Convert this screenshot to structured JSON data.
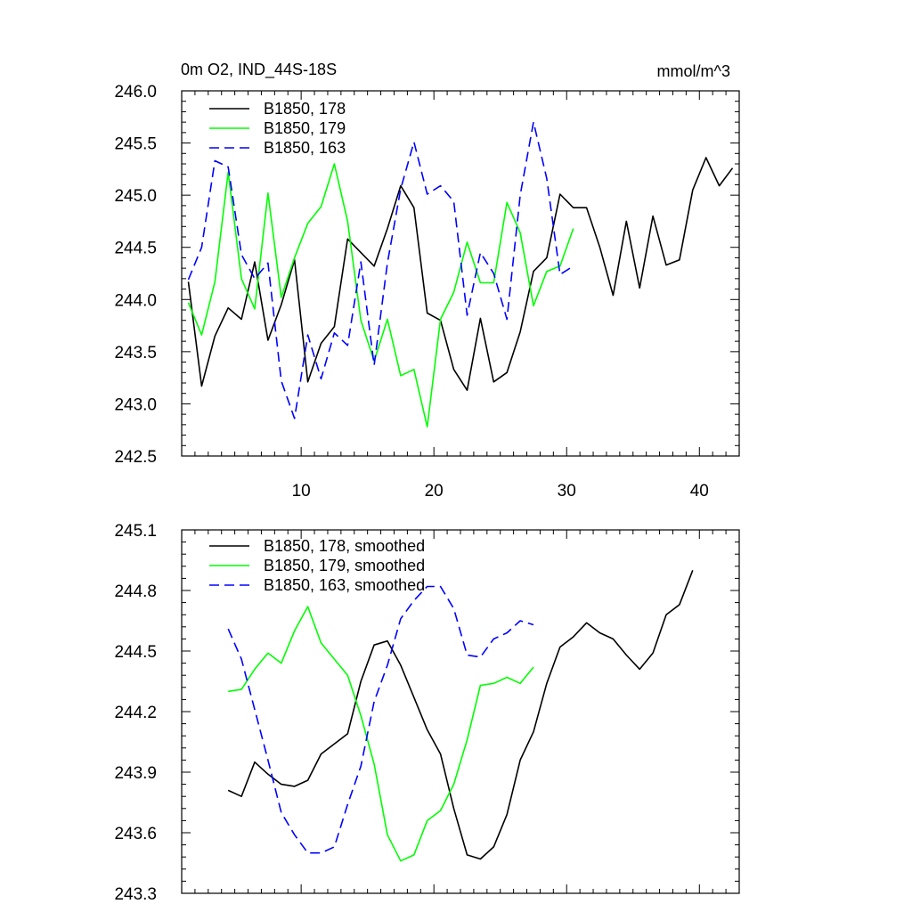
{
  "colors": {
    "black": "#000000",
    "green": "#00ff00",
    "blue": "#0000ff"
  },
  "chart_data": [
    {
      "type": "line",
      "title_left": "0m O2, IND_44S-18S",
      "title_right": "mmol/m^3",
      "xlim": [
        1,
        43
      ],
      "ylim": [
        242.5,
        246.0
      ],
      "xticks": [
        10,
        20,
        30,
        40
      ],
      "xtick_labels": [
        "10",
        "20",
        "30",
        "40"
      ],
      "yticks": [
        242.5,
        243.0,
        243.5,
        244.0,
        244.5,
        245.0,
        245.5,
        246.0
      ],
      "ytick_labels": [
        "242.5",
        "243.0",
        "243.5",
        "244.0",
        "244.5",
        "245.0",
        "245.5",
        "246.0"
      ],
      "series": [
        {
          "name": "B1850, 178",
          "color": "#000000",
          "dash": "solid",
          "x": [
            1.5,
            2.5,
            3.5,
            4.5,
            5.5,
            6.5,
            7.5,
            8.5,
            9.5,
            10.5,
            11.5,
            12.5,
            13.5,
            14.5,
            15.5,
            16.5,
            17.5,
            18.5,
            19.5,
            20.5,
            21.5,
            22.5,
            23.5,
            24.5,
            25.5,
            26.5,
            27.5,
            28.5,
            29.5,
            30.5,
            31.5,
            32.5,
            33.5,
            34.5,
            35.5,
            36.5,
            37.5,
            38.5,
            39.5,
            40.5,
            41.5,
            42.5
          ],
          "values": [
            244.17,
            243.17,
            243.65,
            243.92,
            243.81,
            244.36,
            243.61,
            243.95,
            244.38,
            243.21,
            243.58,
            243.74,
            244.58,
            244.45,
            244.32,
            244.68,
            245.09,
            244.88,
            243.87,
            243.8,
            243.33,
            243.13,
            243.82,
            243.21,
            243.3,
            243.69,
            244.27,
            244.4,
            245.01,
            244.88,
            244.88,
            244.5,
            244.04,
            244.75,
            244.11,
            244.8,
            244.33,
            244.38,
            245.05,
            245.36,
            245.09,
            245.26
          ]
        },
        {
          "name": "B1850, 179",
          "color": "#00ff00",
          "dash": "solid",
          "x": [
            1.5,
            2.5,
            3.5,
            4.5,
            5.5,
            6.5,
            7.5,
            8.5,
            9.5,
            10.5,
            11.5,
            12.5,
            13.5,
            14.5,
            15.5,
            16.5,
            17.5,
            18.5,
            19.5,
            20.5,
            21.5,
            22.5,
            23.5,
            24.5,
            25.5,
            26.5,
            27.5,
            28.5,
            29.5,
            30.5
          ],
          "values": [
            243.97,
            243.66,
            244.17,
            245.22,
            244.2,
            243.91,
            245.02,
            244.02,
            244.4,
            244.73,
            244.89,
            245.3,
            244.75,
            243.8,
            243.41,
            243.81,
            243.27,
            243.33,
            242.78,
            243.81,
            244.07,
            244.55,
            244.16,
            244.16,
            244.93,
            244.64,
            243.94,
            244.27,
            244.32,
            244.68
          ]
        },
        {
          "name": "B1850, 163",
          "color": "#0000ff",
          "dash": "dashed",
          "x": [
            1.5,
            2.5,
            3.5,
            4.5,
            5.5,
            6.5,
            7.5,
            8.5,
            9.5,
            10.5,
            11.5,
            12.5,
            13.5,
            14.5,
            15.5,
            16.5,
            17.5,
            18.5,
            19.5,
            20.5,
            21.5,
            22.5,
            23.5,
            24.5,
            25.5,
            26.5,
            27.5,
            28.5,
            29.5,
            30.5
          ],
          "values": [
            244.19,
            244.5,
            245.33,
            245.27,
            244.43,
            244.2,
            244.35,
            243.22,
            242.86,
            243.66,
            243.24,
            243.68,
            243.56,
            244.36,
            243.37,
            244.35,
            245.06,
            245.51,
            245.01,
            245.09,
            244.94,
            243.85,
            244.45,
            244.25,
            243.81,
            245.0,
            245.7,
            245.16,
            244.24,
            244.32
          ]
        }
      ]
    },
    {
      "type": "line",
      "xlim": [
        1,
        43
      ],
      "ylim": [
        243.3,
        245.1
      ],
      "xticks": [
        10,
        20,
        30,
        40
      ],
      "yticks": [
        243.3,
        243.6,
        243.9,
        244.2,
        244.5,
        244.8,
        245.1
      ],
      "ytick_labels": [
        "243.3",
        "243.6",
        "243.9",
        "244.2",
        "244.5",
        "244.8",
        "245.1"
      ],
      "series": [
        {
          "name": "B1850, 178, smoothed",
          "color": "#000000",
          "dash": "solid",
          "x": [
            4.5,
            5.5,
            6.5,
            7.5,
            8.5,
            9.5,
            10.5,
            11.5,
            12.5,
            13.5,
            14.5,
            15.5,
            16.5,
            17.5,
            18.5,
            19.5,
            20.5,
            21.5,
            22.5,
            23.5,
            24.5,
            25.5,
            26.5,
            27.5,
            28.5,
            29.5,
            30.5,
            31.5,
            32.5,
            33.5,
            34.5,
            35.5,
            36.5,
            37.5,
            38.5,
            39.5
          ],
          "values": [
            243.81,
            243.78,
            243.95,
            243.89,
            243.84,
            243.83,
            243.86,
            243.99,
            244.04,
            244.09,
            244.35,
            244.53,
            244.55,
            244.43,
            244.27,
            244.11,
            243.99,
            243.72,
            243.49,
            243.47,
            243.53,
            243.69,
            243.96,
            244.1,
            244.34,
            244.52,
            244.57,
            244.64,
            244.59,
            244.56,
            244.48,
            244.41,
            244.49,
            244.68,
            244.73,
            244.9
          ]
        },
        {
          "name": "B1850, 179, smoothed",
          "color": "#00ff00",
          "dash": "solid",
          "x": [
            4.5,
            5.5,
            6.5,
            7.5,
            8.5,
            9.5,
            10.5,
            11.5,
            12.5,
            13.5,
            14.5,
            15.5,
            16.5,
            17.5,
            18.5,
            19.5,
            20.5,
            21.5,
            22.5,
            23.5,
            24.5,
            25.5,
            26.5,
            27.5
          ],
          "values": [
            244.3,
            244.31,
            244.41,
            244.49,
            244.44,
            244.6,
            244.72,
            244.54,
            244.46,
            244.38,
            244.18,
            243.94,
            243.59,
            243.46,
            243.49,
            243.66,
            243.71,
            243.84,
            244.06,
            244.33,
            244.34,
            244.37,
            244.34,
            244.42
          ]
        },
        {
          "name": "B1850, 163, smoothed",
          "color": "#0000ff",
          "dash": "dashed",
          "x": [
            4.5,
            5.5,
            6.5,
            7.5,
            8.5,
            9.5,
            10.5,
            11.5,
            12.5,
            13.5,
            14.5,
            15.5,
            16.5,
            17.5,
            18.5,
            19.5,
            20.5,
            21.5,
            22.5,
            23.5,
            24.5,
            25.5,
            26.5,
            27.5
          ],
          "values": [
            244.61,
            244.46,
            244.21,
            243.96,
            243.7,
            243.59,
            243.5,
            243.5,
            243.53,
            243.74,
            243.93,
            244.25,
            244.43,
            244.66,
            244.75,
            244.82,
            244.82,
            244.71,
            244.48,
            244.47,
            244.56,
            244.59,
            244.65,
            244.63
          ]
        }
      ]
    }
  ]
}
